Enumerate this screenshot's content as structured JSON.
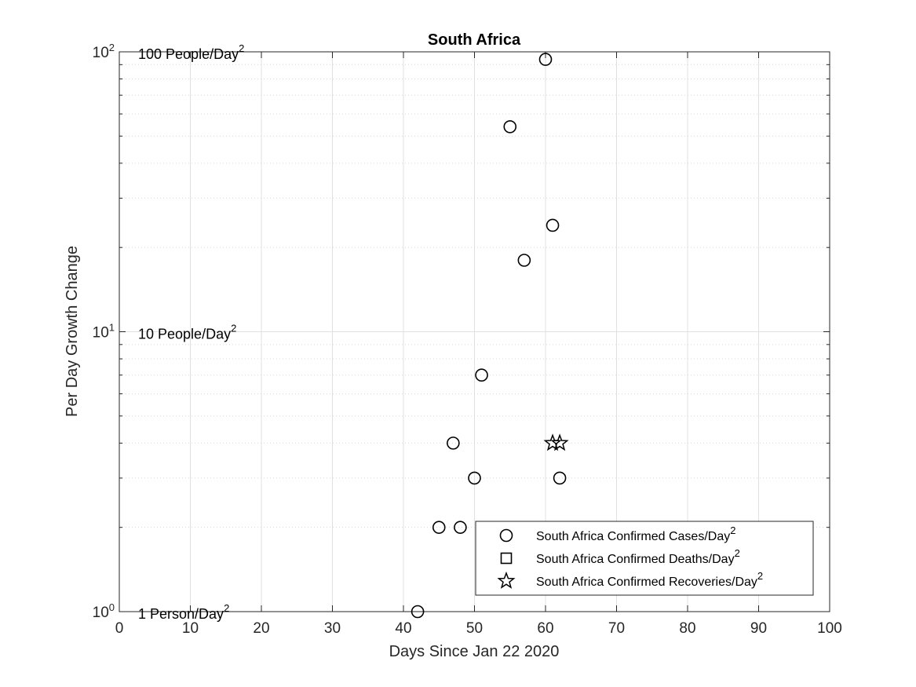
{
  "chart_data": {
    "type": "scatter",
    "title": "South Africa",
    "xlabel": "Days Since Jan 22 2020",
    "ylabel": "Per Day Growth Change",
    "xlim": [
      0,
      100
    ],
    "ylim": [
      1,
      100
    ],
    "yscale": "log",
    "grid": true,
    "x_ticks": [
      "0",
      "10",
      "20",
      "30",
      "40",
      "50",
      "60",
      "70",
      "80",
      "90",
      "100"
    ],
    "y_ticks": [
      {
        "base": "10",
        "exp": "0",
        "value": 1
      },
      {
        "base": "10",
        "exp": "1",
        "value": 10
      },
      {
        "base": "10",
        "exp": "2",
        "value": 100
      }
    ],
    "annotations": [
      {
        "text": "1 Person/Day",
        "sup": "2",
        "y": 1
      },
      {
        "text": "10 People/Day",
        "sup": "2",
        "y": 10
      },
      {
        "text": "100 People/Day",
        "sup": "2",
        "y": 100
      }
    ],
    "legend_position": "bottom-right",
    "series": [
      {
        "name": "South Africa Confirmed Cases/Day",
        "name_sup": "2",
        "marker": "circle",
        "points": [
          {
            "x": 42,
            "y": 1
          },
          {
            "x": 45,
            "y": 2
          },
          {
            "x": 47,
            "y": 4
          },
          {
            "x": 48,
            "y": 2
          },
          {
            "x": 50,
            "y": 3
          },
          {
            "x": 51,
            "y": 7
          },
          {
            "x": 55,
            "y": 54
          },
          {
            "x": 57,
            "y": 18
          },
          {
            "x": 60,
            "y": 94
          },
          {
            "x": 61,
            "y": 24
          },
          {
            "x": 62,
            "y": 3
          }
        ]
      },
      {
        "name": "South Africa Confirmed Deaths/Day",
        "name_sup": "2",
        "marker": "square",
        "points": []
      },
      {
        "name": "South Africa Confirmed Recoveries/Day",
        "name_sup": "2",
        "marker": "star",
        "points": [
          {
            "x": 61,
            "y": 4
          },
          {
            "x": 62,
            "y": 4
          }
        ]
      }
    ]
  }
}
